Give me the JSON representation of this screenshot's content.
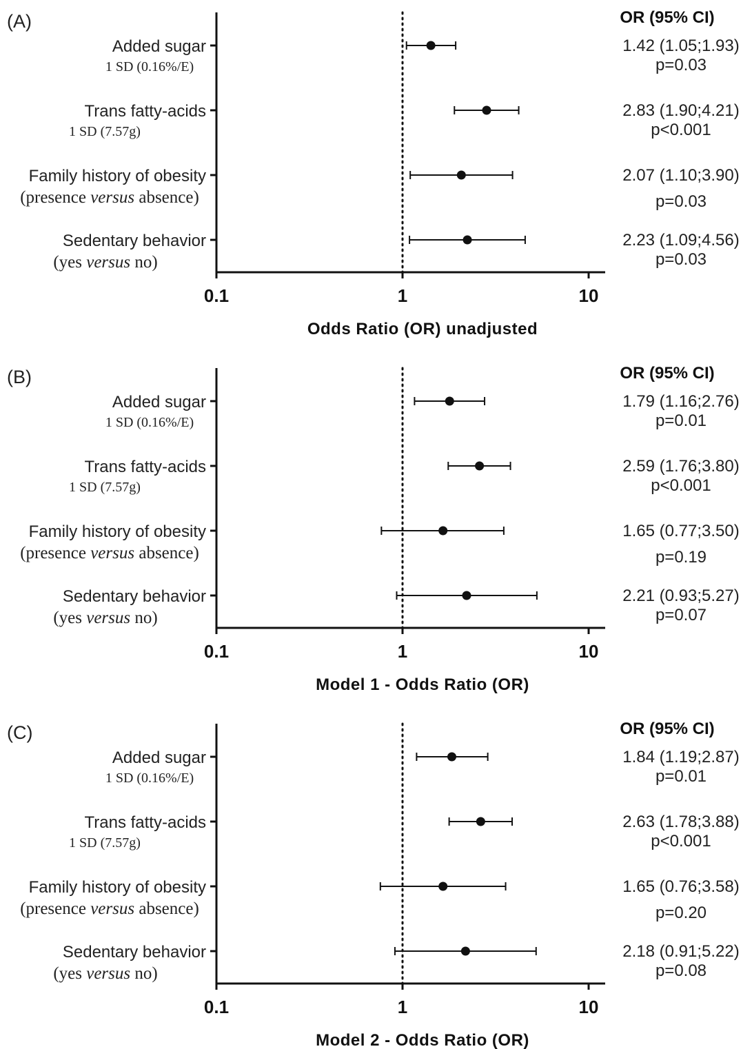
{
  "ci_header": "OR (95% CI)",
  "chart_data": [
    {
      "type": "forest",
      "panel_label": "(A)",
      "xlabel": "Odds Ratio (OR) unadjusted",
      "xscale": "log",
      "xlim": [
        0.1,
        12
      ],
      "xticks": [
        0.1,
        1,
        10
      ],
      "xtick_labels": [
        "0.1",
        "1",
        "10"
      ],
      "reference_line": 1,
      "rows": [
        {
          "label": "Added sugar",
          "sublabel": "1 SD (0.16%/E)",
          "or": 1.42,
          "lower": 1.05,
          "upper": 1.93,
          "or_text": "1.42 (1.05;1.93)",
          "p_text": "p=0.03"
        },
        {
          "label": "Trans fatty-acids",
          "sublabel": "1 SD (7.57g)",
          "or": 2.83,
          "lower": 1.9,
          "upper": 4.21,
          "or_text": "2.83 (1.90;4.21)",
          "p_text": "p<0.001"
        },
        {
          "label": "Family history of obesity",
          "sublabel_parts": [
            "(presence ",
            "versus",
            " absence)"
          ],
          "or": 2.07,
          "lower": 1.1,
          "upper": 3.9,
          "or_text": "2.07 (1.10;3.90)",
          "p_text": "p=0.03"
        },
        {
          "label": "Sedentary behavior",
          "sublabel_parts": [
            "(yes ",
            "versus",
            " no)"
          ],
          "or": 2.23,
          "lower": 1.09,
          "upper": 4.56,
          "or_text": "2.23 (1.09;4.56)",
          "p_text": "p=0.03"
        }
      ]
    },
    {
      "type": "forest",
      "panel_label": "(B)",
      "xlabel": "Model 1 - Odds Ratio (OR)",
      "xscale": "log",
      "xlim": [
        0.1,
        12
      ],
      "xticks": [
        0.1,
        1,
        10
      ],
      "xtick_labels": [
        "0.1",
        "1",
        "10"
      ],
      "reference_line": 1,
      "rows": [
        {
          "label": "Added sugar",
          "sublabel": "1 SD (0.16%/E)",
          "or": 1.79,
          "lower": 1.16,
          "upper": 2.76,
          "or_text": "1.79 (1.16;2.76)",
          "p_text": "p=0.01"
        },
        {
          "label": "Trans fatty-acids",
          "sublabel": "1 SD (7.57g)",
          "or": 2.59,
          "lower": 1.76,
          "upper": 3.8,
          "or_text": "2.59 (1.76;3.80)",
          "p_text": "p<0.001"
        },
        {
          "label": "Family history of obesity",
          "sublabel_parts": [
            "(presence ",
            "versus",
            " absence)"
          ],
          "or": 1.65,
          "lower": 0.77,
          "upper": 3.5,
          "or_text": "1.65 (0.77;3.50)",
          "p_text": "p=0.19"
        },
        {
          "label": "Sedentary behavior",
          "sublabel_parts": [
            "(yes ",
            "versus",
            " no)"
          ],
          "or": 2.21,
          "lower": 0.93,
          "upper": 5.27,
          "or_text": "2.21 (0.93;5.27)",
          "p_text": "p=0.07"
        }
      ]
    },
    {
      "type": "forest",
      "panel_label": "(C)",
      "xlabel": "Model 2 - Odds Ratio (OR)",
      "xscale": "log",
      "xlim": [
        0.1,
        12
      ],
      "xticks": [
        0.1,
        1,
        10
      ],
      "xtick_labels": [
        "0.1",
        "1",
        "10"
      ],
      "reference_line": 1,
      "rows": [
        {
          "label": "Added sugar",
          "sublabel": "1 SD (0.16%/E)",
          "or": 1.84,
          "lower": 1.19,
          "upper": 2.87,
          "or_text": "1.84 (1.19;2.87)",
          "p_text": "p=0.01"
        },
        {
          "label": "Trans fatty-acids",
          "sublabel": "1 SD (7.57g)",
          "or": 2.63,
          "lower": 1.78,
          "upper": 3.88,
          "or_text": "2.63 (1.78;3.88)",
          "p_text": "p<0.001"
        },
        {
          "label": "Family history of obesity",
          "sublabel_parts": [
            "(presence ",
            "versus",
            " absence)"
          ],
          "or": 1.65,
          "lower": 0.76,
          "upper": 3.58,
          "or_text": "1.65 (0.76;3.58)",
          "p_text": "p=0.20"
        },
        {
          "label": "Sedentary behavior",
          "sublabel_parts": [
            "(yes ",
            "versus",
            " no)"
          ],
          "or": 2.18,
          "lower": 0.91,
          "upper": 5.22,
          "or_text": "2.18 (0.91;5.22)",
          "p_text": "p=0.08"
        }
      ]
    }
  ]
}
